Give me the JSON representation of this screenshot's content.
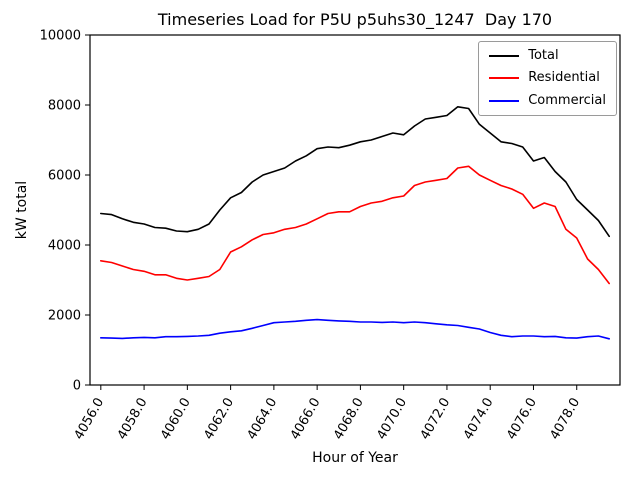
{
  "chart_data": {
    "type": "line",
    "title": "Timeseries Load for P5U p5uhs30_1247  Day 170",
    "xlabel": "Hour of Year",
    "ylabel": "kW total",
    "xlim": [
      4055.5,
      4080.0
    ],
    "ylim": [
      0,
      10000
    ],
    "grid": false,
    "legend_position": "upper right",
    "y_ticks": [
      {
        "value": 0,
        "label": "0"
      },
      {
        "value": 2000,
        "label": "2000"
      },
      {
        "value": 4000,
        "label": "4000"
      },
      {
        "value": 6000,
        "label": "6000"
      },
      {
        "value": 8000,
        "label": "8000"
      },
      {
        "value": 10000,
        "label": "10000"
      }
    ],
    "x_ticks": [
      {
        "value": 4056,
        "label": "4056.0"
      },
      {
        "value": 4058,
        "label": "4058.0"
      },
      {
        "value": 4060,
        "label": "4060.0"
      },
      {
        "value": 4062,
        "label": "4062.0"
      },
      {
        "value": 4064,
        "label": "4064.0"
      },
      {
        "value": 4066,
        "label": "4066.0"
      },
      {
        "value": 4068,
        "label": "4068.0"
      },
      {
        "value": 4070,
        "label": "4070.0"
      },
      {
        "value": 4072,
        "label": "4072.0"
      },
      {
        "value": 4074,
        "label": "4074.0"
      },
      {
        "value": 4076,
        "label": "4076.0"
      },
      {
        "value": 4078,
        "label": "4078.0"
      }
    ],
    "x": [
      4056.0,
      4056.5,
      4057.0,
      4057.5,
      4058.0,
      4058.5,
      4059.0,
      4059.5,
      4060.0,
      4060.5,
      4061.0,
      4061.5,
      4062.0,
      4062.5,
      4063.0,
      4063.5,
      4064.0,
      4064.5,
      4065.0,
      4065.5,
      4066.0,
      4066.5,
      4067.0,
      4067.5,
      4068.0,
      4068.5,
      4069.0,
      4069.5,
      4070.0,
      4070.5,
      4071.0,
      4071.5,
      4072.0,
      4072.5,
      4073.0,
      4073.5,
      4074.0,
      4074.5,
      4075.0,
      4075.5,
      4076.0,
      4076.5,
      4077.0,
      4077.5,
      4078.0,
      4078.5,
      4079.0,
      4079.5
    ],
    "series": [
      {
        "name": "Total",
        "color": "#000000",
        "values": [
          4900,
          4870,
          4750,
          4650,
          4600,
          4500,
          4480,
          4400,
          4380,
          4450,
          4600,
          5000,
          5350,
          5500,
          5800,
          6000,
          6100,
          6200,
          6400,
          6550,
          6750,
          6800,
          6780,
          6850,
          6950,
          7000,
          7100,
          7200,
          7150,
          7400,
          7600,
          7650,
          7700,
          7950,
          7900,
          7450,
          7200,
          6950,
          6900,
          6800,
          6400,
          6500,
          6100,
          5800,
          5300,
          5000,
          4700,
          4250
        ]
      },
      {
        "name": "Residential",
        "color": "#ff0000",
        "values": [
          3550,
          3500,
          3400,
          3300,
          3250,
          3150,
          3150,
          3050,
          3000,
          3050,
          3100,
          3300,
          3800,
          3950,
          4150,
          4300,
          4350,
          4450,
          4500,
          4600,
          4750,
          4900,
          4950,
          4950,
          5100,
          5200,
          5250,
          5350,
          5400,
          5700,
          5800,
          5850,
          5900,
          6200,
          6250,
          6000,
          5850,
          5700,
          5600,
          5450,
          5050,
          5200,
          5100,
          4450,
          4200,
          3600,
          3300,
          2900
        ]
      },
      {
        "name": "Commercial",
        "color": "#0000ff",
        "values": [
          1350,
          1340,
          1330,
          1350,
          1360,
          1350,
          1380,
          1380,
          1390,
          1400,
          1420,
          1480,
          1520,
          1550,
          1620,
          1700,
          1780,
          1800,
          1820,
          1850,
          1870,
          1850,
          1830,
          1820,
          1800,
          1800,
          1790,
          1800,
          1780,
          1800,
          1780,
          1750,
          1720,
          1700,
          1650,
          1600,
          1500,
          1420,
          1380,
          1400,
          1400,
          1380,
          1390,
          1350,
          1340,
          1380,
          1400,
          1320
        ]
      }
    ]
  }
}
